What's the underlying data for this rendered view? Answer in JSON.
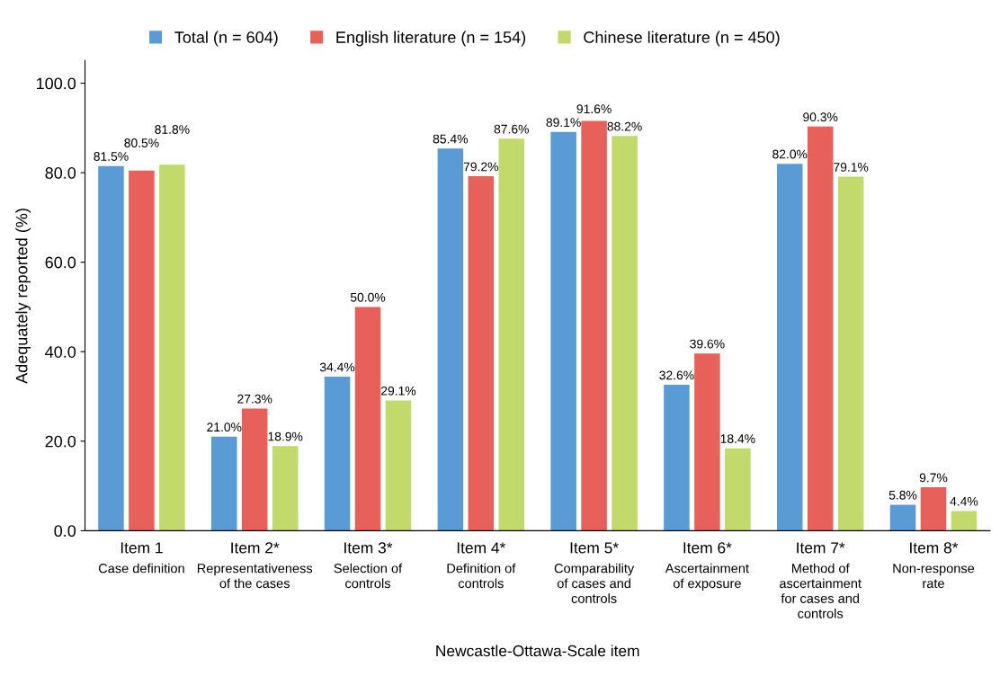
{
  "chart_data": {
    "type": "bar",
    "xlabel": "Newcastle-Ottawa-Scale item",
    "ylabel": "Adequately reported (%)",
    "categories": [
      "Item 1\nCase definition",
      "Item 2*\nRepresentativeness\nof the cases",
      "Item 3*\nSelection of\ncontrols",
      "Item 4*\nDefinition of\ncontrols",
      "Item 5*\nComparability\nof cases and\ncontrols",
      "Item 6*\nAscertainment\nof exposure",
      "Item 7*\nMethod of\nascertainment\nfor cases and\ncontrols",
      "Item 8*\nNon-response\nrate"
    ],
    "series": [
      {
        "name": "Total (n = 604)",
        "color": "#5b9bd5",
        "values": [
          81.5,
          21.0,
          34.4,
          85.4,
          89.1,
          32.6,
          82.0,
          5.8
        ],
        "value_labels": [
          "81.5%",
          "21.0%",
          "34.4%",
          "85.4%",
          "89.1%",
          "32.6%",
          "82.0%",
          "5.8%"
        ]
      },
      {
        "name": "English literature (n = 154)",
        "color": "#e8605a",
        "values": [
          80.5,
          27.3,
          50.0,
          79.2,
          91.6,
          39.6,
          90.3,
          9.7
        ],
        "value_labels": [
          "80.5%",
          "27.3%",
          "50.0%",
          "79.2%",
          "91.6%",
          "39.6%",
          "90.3%",
          "9.7%"
        ]
      },
      {
        "name": "Chinese literature (n = 450)",
        "color": "#c2d96b",
        "values": [
          81.8,
          18.9,
          29.1,
          87.6,
          88.2,
          18.4,
          79.1,
          4.4
        ],
        "value_labels": [
          "81.8%",
          "18.9%",
          "29.1%",
          "87.6%",
          "88.2%",
          "18.4%",
          "79.1%",
          "4.4%"
        ]
      }
    ],
    "ylim": [
      0,
      105
    ],
    "yticks": [
      {
        "value": 0,
        "label": "0.0"
      },
      {
        "value": 20,
        "label": "20.0"
      },
      {
        "value": 40,
        "label": "40.0"
      },
      {
        "value": 60,
        "label": "60.0"
      },
      {
        "value": 80,
        "label": "80.0"
      },
      {
        "value": 100,
        "label": "100.0"
      }
    ],
    "grid": false,
    "legend": "top"
  }
}
